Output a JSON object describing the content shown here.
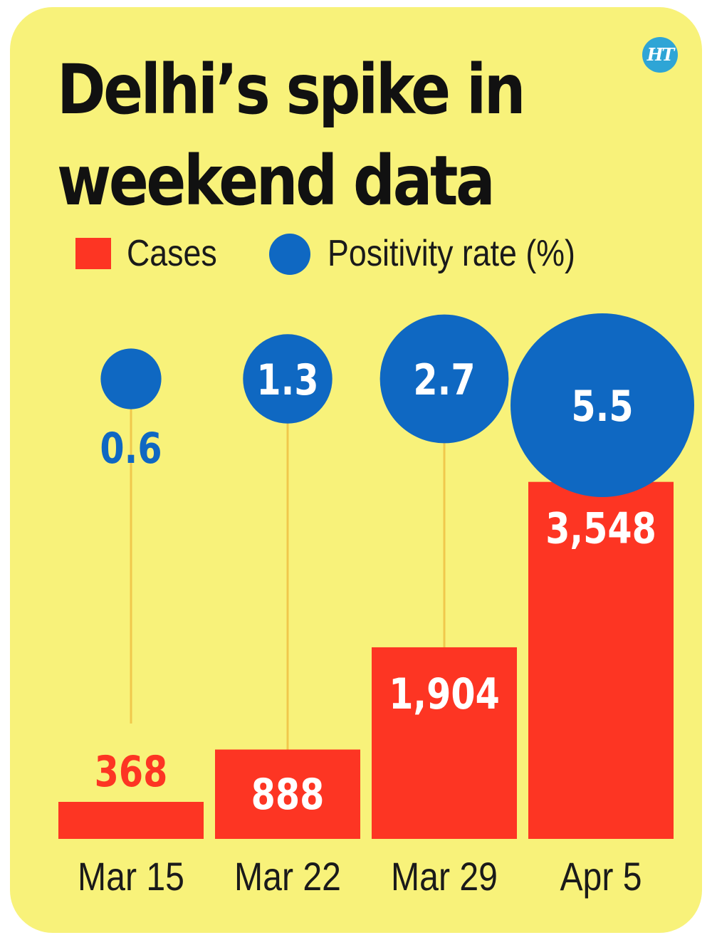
{
  "logo": {
    "text": "HT"
  },
  "chart_data": {
    "type": "bar",
    "title": "Delhi’s spike in weekend data",
    "title_lines": [
      "Delhi’s spike in",
      "weekend data"
    ],
    "legend": [
      {
        "label": "Cases",
        "shape": "square",
        "color": "#fd3523"
      },
      {
        "label": "Positivity rate (%)",
        "shape": "circle",
        "color": "#0f68c2"
      }
    ],
    "categories": [
      "Mar 15",
      "Mar 22",
      "Mar 29",
      "Apr 5"
    ],
    "series": [
      {
        "name": "Cases",
        "values": [
          368,
          888,
          1904,
          3548
        ],
        "labels": [
          "368",
          "888",
          "1,904",
          "3,548"
        ],
        "color": "#fd3523"
      },
      {
        "name": "Positivity rate (%)",
        "values": [
          0.6,
          1.3,
          2.7,
          5.5
        ],
        "labels": [
          "0.6",
          "1.3",
          "2.7",
          "5.5"
        ],
        "color": "#0f68c2"
      }
    ],
    "connector_color": "#f0c84c",
    "xlabel": "",
    "ylabel": ""
  }
}
